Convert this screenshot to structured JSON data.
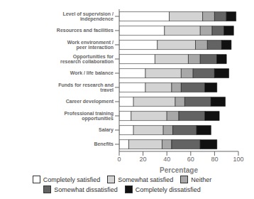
{
  "chart_data": {
    "type": "bar",
    "orientation": "horizontal",
    "stacked": true,
    "categories": [
      "Level of supervision / independence",
      "Resources and facilities",
      "Work environment / peer interaction",
      "Opportunities for research collaboration",
      "Work / life balance",
      "Funds for research and travel",
      "Career development",
      "Professional training opportunities",
      "Salary",
      "Benefits"
    ],
    "series": [
      {
        "name": "Completely satisfied",
        "color": "#ffffff",
        "values": [
          42,
          38,
          32,
          30,
          22,
          22,
          12,
          10,
          12,
          8
        ]
      },
      {
        "name": "Somewhat satisfied",
        "color": "#d3d3d3",
        "values": [
          28,
          30,
          32,
          28,
          30,
          22,
          35,
          30,
          25,
          28
        ]
      },
      {
        "name": "Neither",
        "color": "#a8a8a8",
        "values": [
          10,
          10,
          10,
          10,
          10,
          8,
          8,
          10,
          8,
          8
        ]
      },
      {
        "name": "Somewhat dissatisfied",
        "color": "#636363",
        "values": [
          10,
          10,
          12,
          14,
          18,
          20,
          22,
          22,
          20,
          24
        ]
      },
      {
        "name": "Completely dissatisfied",
        "color": "#111111",
        "values": [
          8,
          8,
          8,
          8,
          12,
          10,
          12,
          12,
          12,
          14
        ]
      }
    ],
    "xlabel": "Percentage",
    "xlim": [
      0,
      100
    ],
    "xticks": [
      0,
      20,
      40,
      60,
      80,
      100
    ],
    "grid": false,
    "legend": "bottom"
  }
}
